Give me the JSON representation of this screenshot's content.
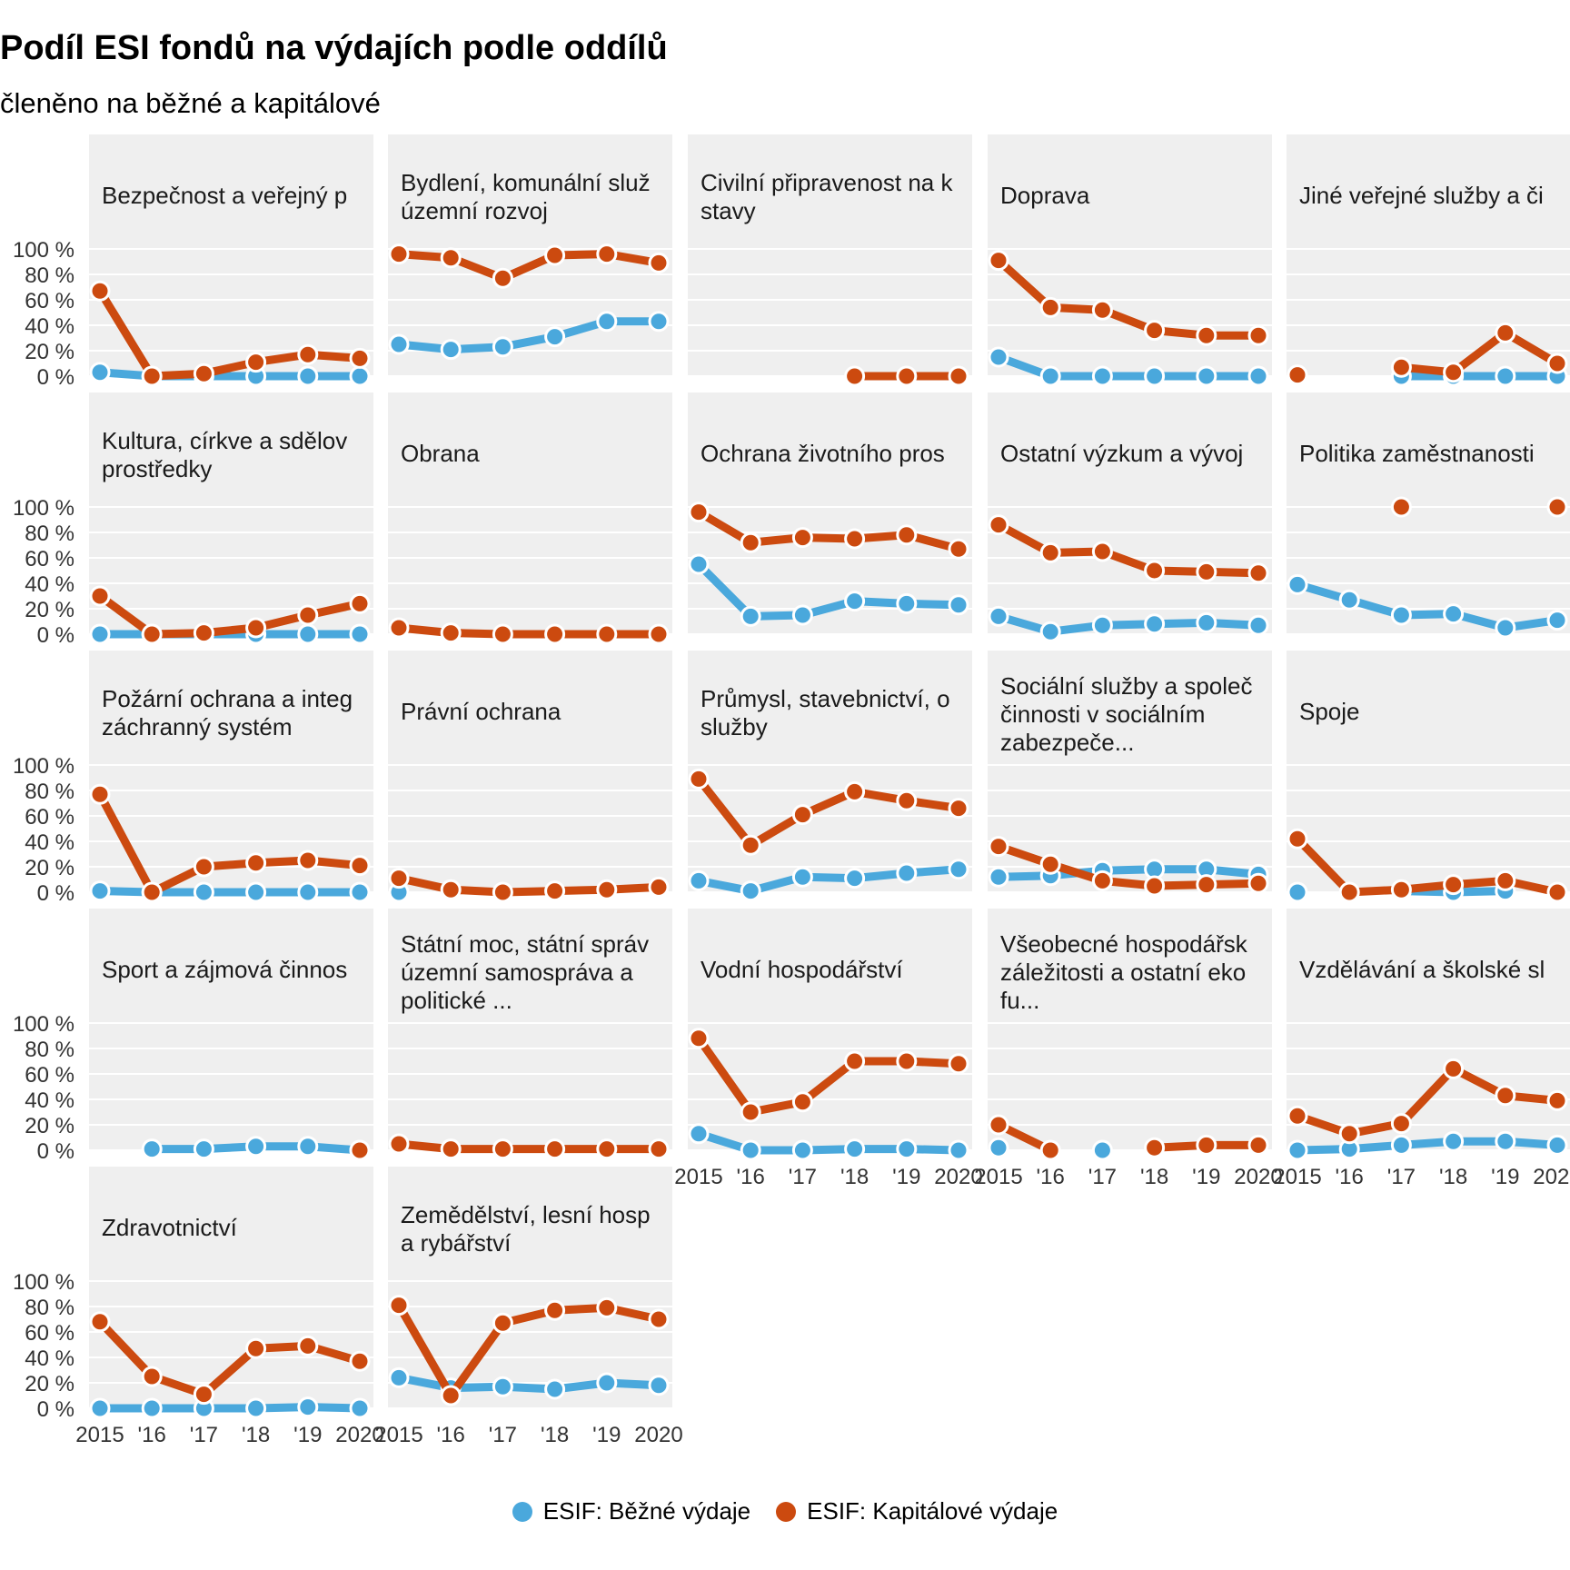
{
  "title": "Podíl ESI fondů na výdajích podle oddílů",
  "subtitle": "členěno na běžné a kapitálové",
  "colors": {
    "bezne": "#4aa8dc",
    "kapitalove": "#cc4a0f",
    "panel_bg": "#efefef",
    "grid": "#ffffff"
  },
  "legend": {
    "bezne_label": "ESIF: Běžné výdaje",
    "kapitalove_label": "ESIF: Kapitálové výdaje"
  },
  "chart_data": {
    "type": "line",
    "x": [
      2015,
      2016,
      2017,
      2018,
      2019,
      2020
    ],
    "x_tick_labels": [
      "2015",
      "'16",
      "'17",
      "'18",
      "'19",
      "2020"
    ],
    "y_tick_labels": [
      "0 %",
      "20 %",
      "40 %",
      "60 %",
      "80 %",
      "100 %"
    ],
    "ylim": [
      0,
      100
    ],
    "series_names": [
      "ESIF: Běžné výdaje",
      "ESIF: Kapitálové výdaje"
    ],
    "panels": [
      {
        "strip": [
          "Bezpečnost a veřejný p"
        ],
        "bezne": [
          3,
          0,
          0,
          0,
          0,
          0
        ],
        "kapitalove": [
          67,
          0,
          2,
          11,
          17,
          14
        ]
      },
      {
        "strip": [
          "Bydlení, komunální služ",
          "územní rozvoj"
        ],
        "bezne": [
          25,
          21,
          23,
          31,
          43,
          43
        ],
        "kapitalove": [
          96,
          93,
          77,
          95,
          96,
          89
        ]
      },
      {
        "strip": [
          "Civilní připravenost na k",
          "stavy"
        ],
        "bezne": [
          null,
          null,
          null,
          null,
          null,
          null
        ],
        "kapitalove": [
          null,
          null,
          null,
          0,
          0,
          0
        ]
      },
      {
        "strip": [
          "Doprava"
        ],
        "bezne": [
          15,
          0,
          0,
          0,
          0,
          0
        ],
        "kapitalove": [
          91,
          54,
          52,
          36,
          32,
          32
        ]
      },
      {
        "strip": [
          "Jiné veřejné služby a či"
        ],
        "bezne": [
          0,
          null,
          0,
          0,
          0,
          0
        ],
        "kapitalove": [
          1,
          null,
          7,
          3,
          34,
          10
        ]
      },
      {
        "strip": [
          "Kultura, církve a sdělov",
          "prostředky"
        ],
        "bezne": [
          0,
          0,
          0,
          0,
          0,
          0
        ],
        "kapitalove": [
          30,
          0,
          1,
          5,
          15,
          24
        ]
      },
      {
        "strip": [
          "Obrana"
        ],
        "bezne": [
          null,
          null,
          null,
          null,
          null,
          null
        ],
        "kapitalove": [
          5,
          1,
          0,
          0,
          0,
          0
        ]
      },
      {
        "strip": [
          "Ochrana životního pros"
        ],
        "bezne": [
          55,
          14,
          15,
          26,
          24,
          23
        ],
        "kapitalove": [
          96,
          72,
          76,
          75,
          78,
          67
        ]
      },
      {
        "strip": [
          "Ostatní výzkum a vývoj"
        ],
        "bezne": [
          14,
          2,
          7,
          8,
          9,
          7
        ],
        "kapitalove": [
          86,
          64,
          65,
          50,
          49,
          48
        ]
      },
      {
        "strip": [
          "Politika zaměstnanosti"
        ],
        "bezne": [
          39,
          27,
          15,
          16,
          5,
          11
        ],
        "kapitalove": [
          null,
          null,
          100,
          null,
          null,
          100
        ]
      },
      {
        "strip": [
          "Požární ochrana a integ",
          "záchranný systém"
        ],
        "bezne": [
          1,
          0,
          0,
          0,
          0,
          0
        ],
        "kapitalove": [
          77,
          0,
          20,
          23,
          25,
          21
        ]
      },
      {
        "strip": [
          "Právní ochrana"
        ],
        "bezne": [
          0,
          null,
          null,
          null,
          null,
          null
        ],
        "kapitalove": [
          11,
          2,
          0,
          1,
          2,
          4
        ]
      },
      {
        "strip": [
          "Průmysl, stavebnictví, o",
          "služby"
        ],
        "bezne": [
          9,
          1,
          12,
          11,
          15,
          18
        ],
        "kapitalove": [
          89,
          37,
          61,
          79,
          72,
          66
        ]
      },
      {
        "strip": [
          "Sociální služby a společ",
          "činnosti v sociálním",
          "zabezpeče..."
        ],
        "bezne": [
          12,
          13,
          17,
          18,
          18,
          14
        ],
        "kapitalove": [
          36,
          22,
          9,
          5,
          6,
          7
        ]
      },
      {
        "strip": [
          "Spoje"
        ],
        "bezne": [
          0,
          null,
          1,
          0,
          1,
          null
        ],
        "kapitalove": [
          42,
          0,
          2,
          6,
          9,
          0
        ]
      },
      {
        "strip": [
          "Sport a zájmová činnos"
        ],
        "bezne": [
          null,
          1,
          1,
          3,
          3,
          0
        ],
        "kapitalove": [
          null,
          null,
          null,
          null,
          null,
          0
        ]
      },
      {
        "strip": [
          "Státní moc, státní správ",
          "územní samospráva a",
          "politické ..."
        ],
        "bezne": [
          null,
          null,
          null,
          null,
          null,
          null
        ],
        "kapitalove": [
          5,
          1,
          1,
          1,
          1,
          1
        ]
      },
      {
        "strip": [
          "Vodní hospodářství"
        ],
        "bezne": [
          13,
          0,
          0,
          1,
          1,
          0
        ],
        "kapitalove": [
          88,
          30,
          38,
          70,
          70,
          68
        ]
      },
      {
        "strip": [
          "Všeobecné hospodářsk",
          "záležitosti a ostatní eko",
          "fu..."
        ],
        "bezne": [
          2,
          null,
          0,
          null,
          null,
          null
        ],
        "kapitalove": [
          20,
          0,
          null,
          2,
          4,
          4
        ]
      },
      {
        "strip": [
          "Vzdělávání a školské sl"
        ],
        "bezne": [
          0,
          1,
          4,
          7,
          7,
          4
        ],
        "kapitalove": [
          27,
          13,
          21,
          64,
          43,
          39
        ]
      },
      {
        "strip": [
          "Zdravotnictví"
        ],
        "bezne": [
          0,
          0,
          0,
          0,
          1,
          0
        ],
        "kapitalove": [
          68,
          25,
          11,
          47,
          49,
          37
        ]
      },
      {
        "strip": [
          "Zemědělství, lesní hosp",
          "a rybářství"
        ],
        "bezne": [
          24,
          16,
          17,
          15,
          20,
          18
        ],
        "kapitalove": [
          81,
          10,
          67,
          77,
          79,
          70
        ]
      }
    ]
  }
}
